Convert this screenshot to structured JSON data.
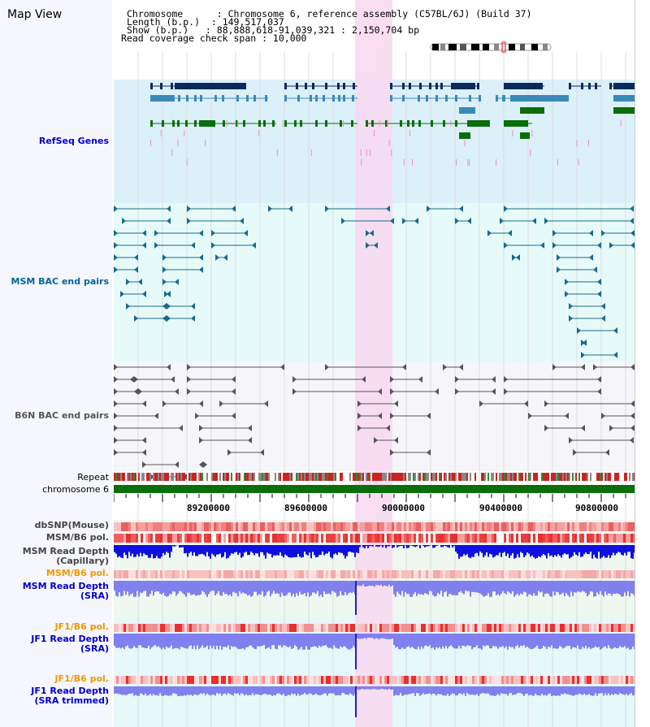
{
  "view": {
    "title": "Map View",
    "info_lines": [
      "Chromosome      : Chromosome 6, reference assembly (C57BL/6J) (Build 37)",
      "Length (b.p.)  : 149,517,037",
      "Show (b.p.)   : 88,888,618-91,039,321 : 2,150,704 bp",
      "Read coverage check span : 10,000"
    ]
  },
  "tracks": {
    "refseq": {
      "label": "RefSeq Genes",
      "color": "#0000cc"
    },
    "msm_bac": {
      "label": "MSM BAC end pairs",
      "color": "#006699"
    },
    "b6n_bac": {
      "label": "B6N BAC end pairs",
      "color": "#555555"
    },
    "repeat": {
      "label": "Repeat",
      "color": "#000000"
    },
    "chromosome": {
      "label": "chromosome 6",
      "color": "#000000"
    },
    "dbsnp": {
      "label": "dbSNP(Mouse)",
      "color": "#444444"
    },
    "msm_b6_pol": {
      "label": "MSM/B6 pol.",
      "color": "#444444"
    },
    "msm_depth_cap": {
      "label": "MSM Read Depth",
      "label2": "(Capillary)",
      "color": "#444444"
    },
    "msm_b6_pol2": {
      "label": "MSM/B6 pol.",
      "color": "#ee9900"
    },
    "msm_depth_sra": {
      "label": "MSM Read Depth",
      "label2": "(SRA)",
      "color": "#0000cc"
    },
    "jf1_b6_pol": {
      "label": "JF1/B6 pol.",
      "color": "#ee9900"
    },
    "jf1_depth_sra": {
      "label": "JF1 Read Depth",
      "label2": "(SRA)",
      "color": "#0000cc"
    },
    "jf1_b6_pol2": {
      "label": "JF1/B6 pol.",
      "color": "#ee9900"
    },
    "jf1_depth_trim": {
      "label": "JF1 Read Depth",
      "label2": "(SRA trimmed)",
      "color": "#0000cc"
    }
  },
  "axis": {
    "ticks": [
      "89200000",
      "89600000",
      "90000000",
      "90400000",
      "90800000"
    ]
  },
  "colors": {
    "refseq_bg": "#dcf0fa",
    "msm_bg": "#e6fafa",
    "b6n_bg": "#f6f6fa",
    "highlight": "#f8d8f0",
    "gene_navy": "#0a2a5e",
    "gene_blue": "#3a8ab8",
    "gene_green": "#0a6e0a",
    "msm_line": "#1a6a8a",
    "b6n_line": "#555555"
  }
}
